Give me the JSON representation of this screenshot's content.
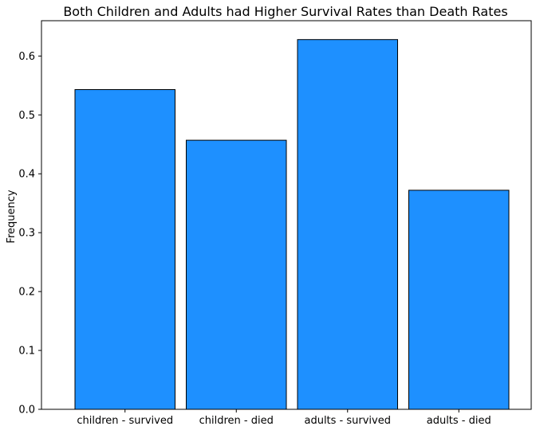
{
  "chart_data": {
    "type": "bar",
    "title": "Both Children and Adults had Higher Survival Rates than Death Rates",
    "xlabel": "",
    "ylabel": "Frequency",
    "categories": [
      "children - survived",
      "children - died",
      "adults - survived",
      "adults - died"
    ],
    "values": [
      0.543,
      0.457,
      0.628,
      0.372
    ],
    "ylim": [
      0,
      0.66
    ],
    "yticks": [
      "0.0",
      "0.1",
      "0.2",
      "0.3",
      "0.4",
      "0.5",
      "0.6"
    ],
    "grid": false,
    "legend": "none",
    "bar_color": "#1e90ff",
    "edge_color": "#000000"
  }
}
